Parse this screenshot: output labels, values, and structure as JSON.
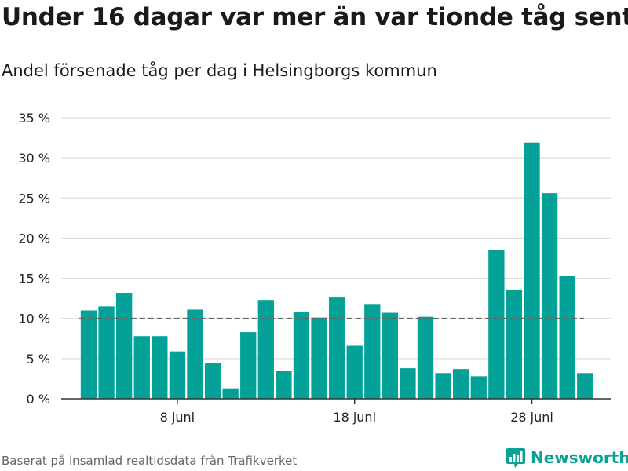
{
  "title": "Under 16 dagar var mer än var tionde tåg sent",
  "subtitle": "Andel försenade tåg per dag i Helsingborgs kommun",
  "source": "Baserat på insamlad realtidsdata från Trafikverket",
  "brand": {
    "name": "Newsworthy",
    "icon": "newsworthy-logo-icon",
    "color": "#0aa297"
  },
  "colors": {
    "bar": "#03a197",
    "reference_line": "#666666",
    "grid": "#dddddd",
    "axis": "#333333"
  },
  "chart_data": {
    "type": "bar",
    "title": "Under 16 dagar var mer än var tionde tåg sent",
    "subtitle": "Andel försenade tåg per dag i Helsingborgs kommun",
    "xlabel": "",
    "ylabel": "",
    "x": [
      3,
      4,
      5,
      6,
      7,
      8,
      9,
      10,
      11,
      12,
      13,
      14,
      15,
      16,
      17,
      18,
      19,
      20,
      21,
      22,
      23,
      24,
      25,
      26,
      27,
      28,
      29,
      30,
      31
    ],
    "values": [
      11.0,
      11.5,
      13.2,
      7.8,
      7.8,
      5.9,
      11.1,
      4.4,
      1.3,
      8.3,
      12.3,
      3.5,
      10.8,
      10.1,
      12.7,
      6.6,
      11.8,
      10.7,
      3.8,
      10.2,
      3.2,
      3.7,
      2.8,
      18.5,
      13.6,
      31.9,
      25.6,
      15.3,
      3.2
    ],
    "unit": "%",
    "xticks": [
      {
        "x": 8,
        "label": "8 juni"
      },
      {
        "x": 18,
        "label": "18 juni"
      },
      {
        "x": 28,
        "label": "28 juni"
      }
    ],
    "yticks": [
      {
        "y": 0,
        "label": "0 %"
      },
      {
        "y": 5,
        "label": "5 %"
      },
      {
        "y": 10,
        "label": "10 %"
      },
      {
        "y": 15,
        "label": "15 %"
      },
      {
        "y": 20,
        "label": "20 %"
      },
      {
        "y": 25,
        "label": "25 %"
      },
      {
        "y": 30,
        "label": "30 %"
      },
      {
        "y": 35,
        "label": "35 %"
      }
    ],
    "ylim": [
      0,
      35
    ],
    "xlim": [
      1.45,
      32.45
    ],
    "reference_line": 10,
    "grid": true,
    "legend": "none"
  }
}
